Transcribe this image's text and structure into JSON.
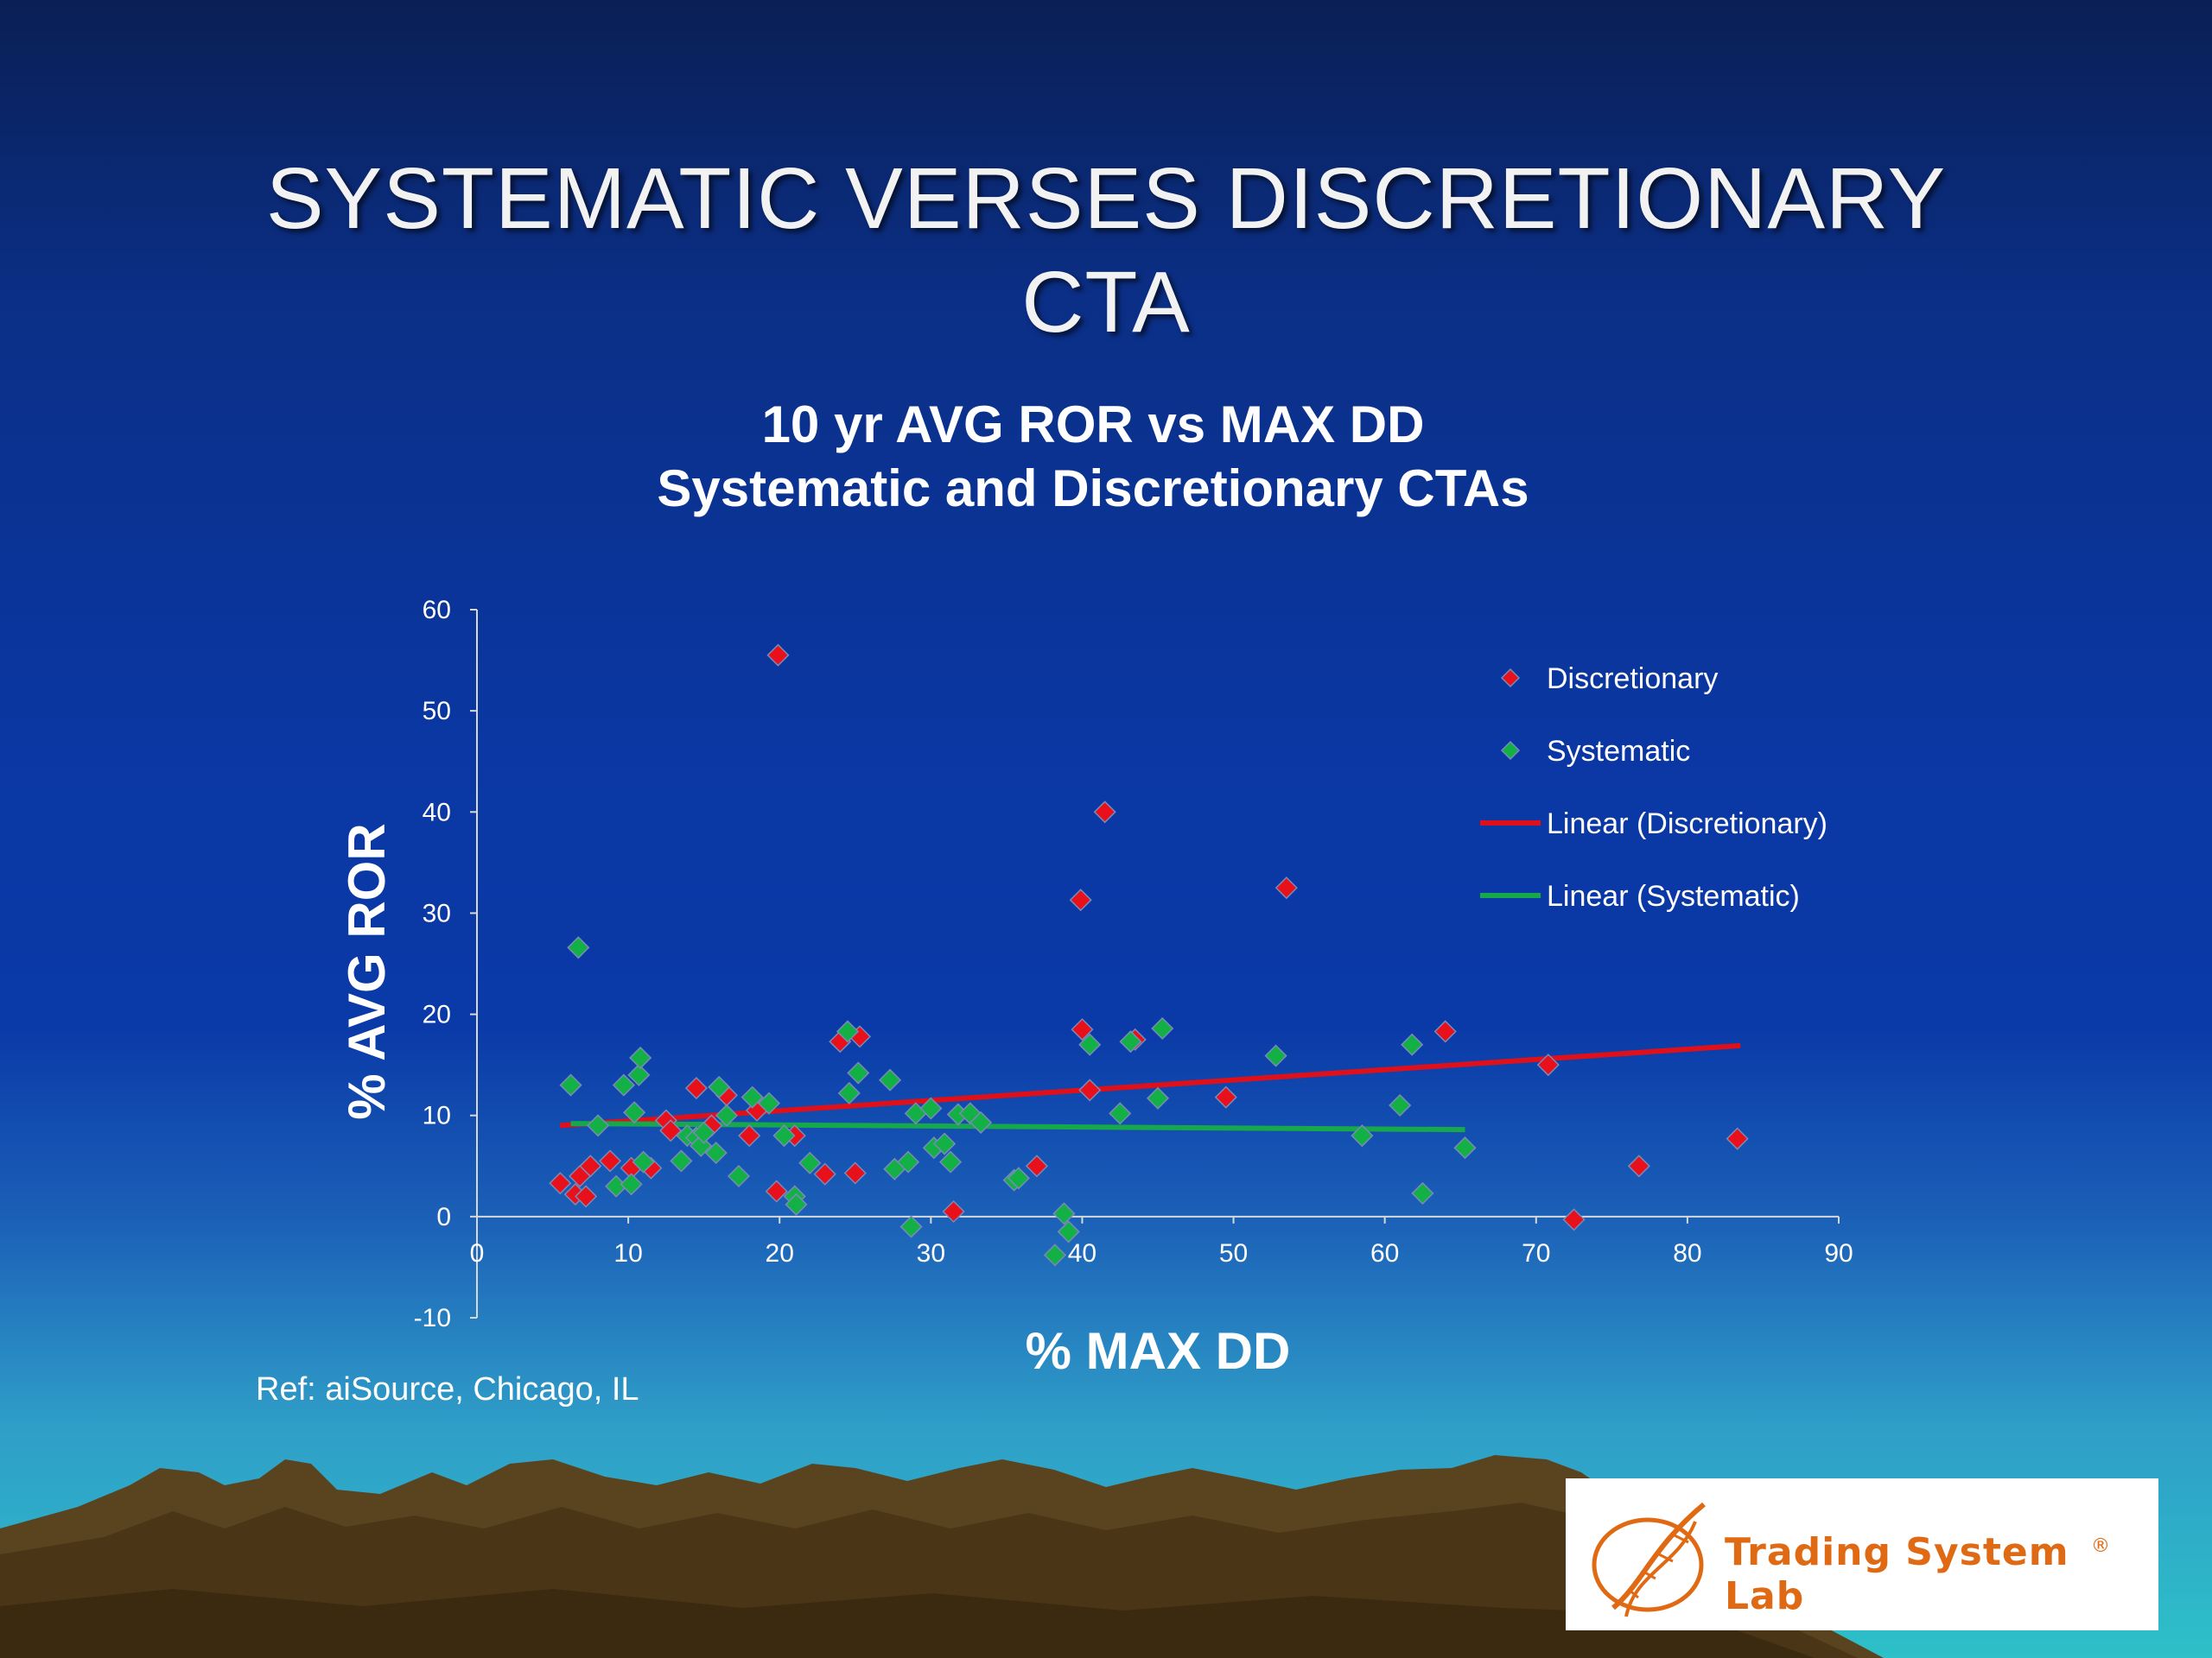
{
  "slide": {
    "title_line1": "SYSTEMATIC VERSES DISCRETIONARY",
    "title_line2": "CTA",
    "ref": "Ref: aiSource, Chicago, IL",
    "logo_text": "Trading System Lab",
    "logo_mark": "®"
  },
  "colors": {
    "discretionary": "#e8101a",
    "systematic": "#12b045",
    "discretionary_line": "#e0101a",
    "systematic_line": "#16a84a"
  },
  "chart_data": {
    "type": "scatter",
    "title_line1": "10 yr AVG ROR vs MAX DD",
    "title_line2": "Systematic and Discretionary CTAs",
    "xlabel": "% MAX DD",
    "ylabel": "% AVG ROR",
    "xlim": [
      0,
      90
    ],
    "ylim": [
      -10,
      60
    ],
    "x_ticks": [
      "0",
      "10",
      "20",
      "30",
      "40",
      "50",
      "60",
      "70",
      "80",
      "90"
    ],
    "y_ticks": [
      "60",
      "50",
      "40",
      "30",
      "20",
      "10",
      "0",
      "-10"
    ],
    "legend_position": "top-right",
    "legend": [
      "Discretionary",
      "Systematic",
      "Linear (Discretionary)",
      "Linear (Systematic)"
    ],
    "series": [
      {
        "name": "Discretionary",
        "points": [
          [
            5.5,
            3.3
          ],
          [
            6.5,
            2.2
          ],
          [
            6.8,
            4.0
          ],
          [
            7.2,
            2.0
          ],
          [
            7.5,
            5.0
          ],
          [
            8.8,
            5.5
          ],
          [
            10.2,
            4.8
          ],
          [
            11.5,
            4.8
          ],
          [
            12.5,
            9.5
          ],
          [
            12.8,
            8.5
          ],
          [
            14.5,
            12.7
          ],
          [
            15.5,
            9.0
          ],
          [
            16.5,
            12.0
          ],
          [
            18.0,
            8.0
          ],
          [
            18.5,
            10.5
          ],
          [
            19.8,
            2.5
          ],
          [
            19.9,
            55.5
          ],
          [
            21.0,
            8.0
          ],
          [
            23.0,
            4.2
          ],
          [
            24.0,
            17.3
          ],
          [
            25.0,
            4.3
          ],
          [
            25.3,
            17.8
          ],
          [
            31.5,
            0.5
          ],
          [
            37.0,
            5.0
          ],
          [
            39.9,
            31.3
          ],
          [
            40.0,
            18.5
          ],
          [
            40.5,
            12.5
          ],
          [
            41.5,
            40.0
          ],
          [
            43.5,
            17.5
          ],
          [
            49.5,
            11.8
          ],
          [
            53.5,
            32.5
          ],
          [
            64.0,
            18.3
          ],
          [
            70.8,
            15.0
          ],
          [
            72.5,
            -0.3
          ],
          [
            76.8,
            5.0
          ],
          [
            83.3,
            7.7
          ]
        ]
      },
      {
        "name": "Systematic",
        "points": [
          [
            6.2,
            13.0
          ],
          [
            6.7,
            26.6
          ],
          [
            8.0,
            9.0
          ],
          [
            9.2,
            3.0
          ],
          [
            9.7,
            13.0
          ],
          [
            10.2,
            3.2
          ],
          [
            10.4,
            10.3
          ],
          [
            10.7,
            14.0
          ],
          [
            10.8,
            15.7
          ],
          [
            11.0,
            5.4
          ],
          [
            13.5,
            5.5
          ],
          [
            13.9,
            8.0
          ],
          [
            14.5,
            7.8
          ],
          [
            14.8,
            7.0
          ],
          [
            15.0,
            8.3
          ],
          [
            15.8,
            6.3
          ],
          [
            16.0,
            12.8
          ],
          [
            16.5,
            10.0
          ],
          [
            17.3,
            4.0
          ],
          [
            18.2,
            11.8
          ],
          [
            19.3,
            11.2
          ],
          [
            20.3,
            8.0
          ],
          [
            21.0,
            2.0
          ],
          [
            21.1,
            1.2
          ],
          [
            22.0,
            5.3
          ],
          [
            24.5,
            18.3
          ],
          [
            24.6,
            12.2
          ],
          [
            25.2,
            14.2
          ],
          [
            27.3,
            13.5
          ],
          [
            27.6,
            4.7
          ],
          [
            28.5,
            5.4
          ],
          [
            28.7,
            -1.0
          ],
          [
            29.0,
            10.2
          ],
          [
            30.0,
            10.7
          ],
          [
            30.2,
            6.8
          ],
          [
            30.9,
            7.2
          ],
          [
            31.3,
            5.4
          ],
          [
            31.8,
            10.1
          ],
          [
            32.6,
            10.2
          ],
          [
            33.3,
            9.3
          ],
          [
            35.5,
            3.6
          ],
          [
            35.8,
            3.8
          ],
          [
            38.2,
            -3.8
          ],
          [
            38.8,
            0.3
          ],
          [
            39.1,
            -1.5
          ],
          [
            40.5,
            17.0
          ],
          [
            42.5,
            10.2
          ],
          [
            43.2,
            17.3
          ],
          [
            45.0,
            11.7
          ],
          [
            45.3,
            18.6
          ],
          [
            52.8,
            15.9
          ],
          [
            58.5,
            8.0
          ],
          [
            61.0,
            11.0
          ],
          [
            61.8,
            17.0
          ],
          [
            62.5,
            2.3
          ],
          [
            65.3,
            6.8
          ]
        ]
      }
    ],
    "trendlines": [
      {
        "name": "Linear (Discretionary)",
        "from": [
          5.5,
          9.0
        ],
        "to": [
          83.5,
          16.9
        ]
      },
      {
        "name": "Linear (Systematic)",
        "from": [
          6.2,
          9.2
        ],
        "to": [
          65.3,
          8.6
        ]
      }
    ]
  }
}
